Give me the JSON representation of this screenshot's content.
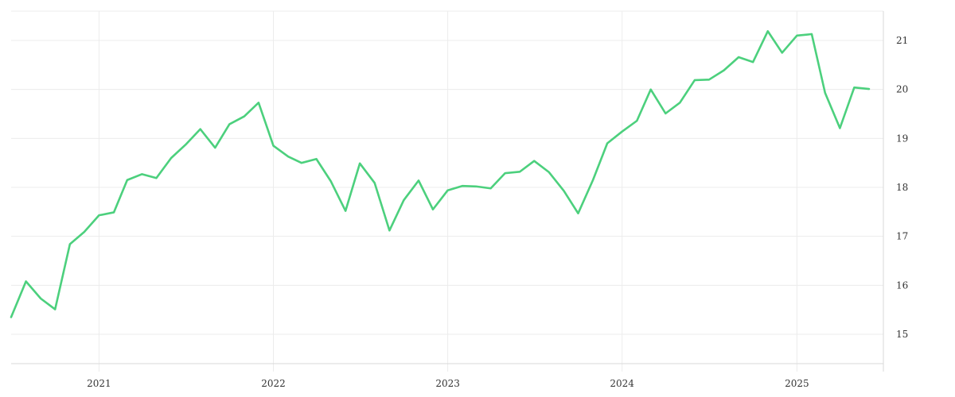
{
  "chart_data": {
    "type": "line",
    "title": "",
    "xlabel": "",
    "ylabel": "",
    "xlim": [
      "2020-07-01",
      "2025-07-01"
    ],
    "ylim": [
      14.4,
      21.6
    ],
    "grid": true,
    "legend": "none",
    "line_color": "#4cd07d",
    "x_ticks": [
      {
        "date": "2021-01-01",
        "label": "2021"
      },
      {
        "date": "2022-01-01",
        "label": "2022"
      },
      {
        "date": "2023-01-01",
        "label": "2023"
      },
      {
        "date": "2024-01-01",
        "label": "2024"
      },
      {
        "date": "2025-01-01",
        "label": "2025"
      }
    ],
    "y_ticks": [
      {
        "value": 15,
        "label": "15"
      },
      {
        "value": 16,
        "label": "16"
      },
      {
        "value": 17,
        "label": "17"
      },
      {
        "value": 18,
        "label": "18"
      },
      {
        "value": 19,
        "label": "19"
      },
      {
        "value": 20,
        "label": "20"
      },
      {
        "value": 21,
        "label": "21"
      }
    ],
    "series": [
      {
        "color": "#4cd07d",
        "x": [
          "2020-07",
          "2020-08",
          "2020-09",
          "2020-10",
          "2020-11",
          "2020-12",
          "2021-01",
          "2021-02",
          "2021-03",
          "2021-04",
          "2021-05",
          "2021-06",
          "2021-07",
          "2021-08",
          "2021-09",
          "2021-10",
          "2021-11",
          "2021-12",
          "2022-01",
          "2022-02",
          "2022-03",
          "2022-04",
          "2022-05",
          "2022-06",
          "2022-07",
          "2022-08",
          "2022-09",
          "2022-10",
          "2022-11",
          "2022-12",
          "2023-01",
          "2023-02",
          "2023-03",
          "2023-04",
          "2023-05",
          "2023-06",
          "2023-07",
          "2023-08",
          "2023-09",
          "2023-10",
          "2023-11",
          "2023-12",
          "2024-01",
          "2024-02",
          "2024-03",
          "2024-04",
          "2024-05",
          "2024-06",
          "2024-07",
          "2024-08",
          "2024-09",
          "2024-10",
          "2024-11",
          "2024-12",
          "2025-01",
          "2025-02",
          "2025-03",
          "2025-04",
          "2025-05",
          "2025-06"
        ],
        "values": [
          15.35,
          16.08,
          15.73,
          15.51,
          16.84,
          17.09,
          17.43,
          17.49,
          18.15,
          18.27,
          18.19,
          18.6,
          18.87,
          19.19,
          18.81,
          19.29,
          19.45,
          19.73,
          18.85,
          18.63,
          18.5,
          18.58,
          18.13,
          17.52,
          18.49,
          18.09,
          17.12,
          17.74,
          18.14,
          17.55,
          17.94,
          18.03,
          18.02,
          17.98,
          18.29,
          18.32,
          18.54,
          18.31,
          17.93,
          17.47,
          18.15,
          18.9,
          19.14,
          19.36,
          20.0,
          19.51,
          19.73,
          20.19,
          20.2,
          20.39,
          20.66,
          20.56,
          21.19,
          20.75,
          21.1,
          21.13,
          19.93,
          19.21,
          20.04,
          20.01
        ]
      }
    ]
  }
}
